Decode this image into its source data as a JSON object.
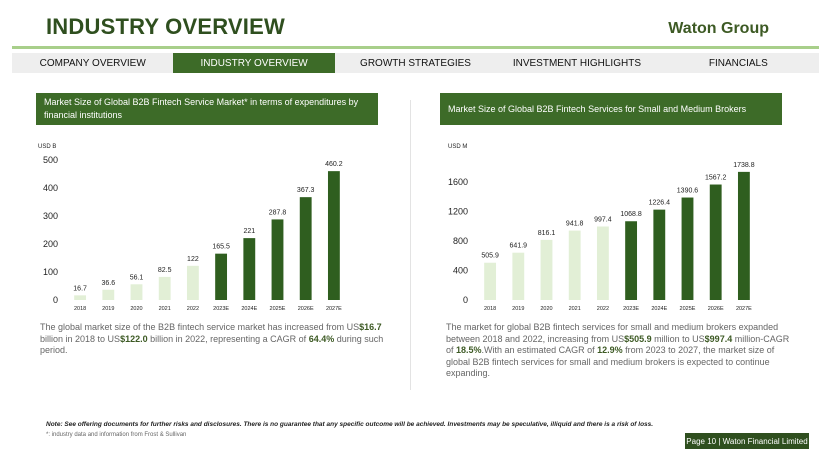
{
  "header": {
    "title": "INDUSTRY OVERVIEW",
    "brand": "Waton Group"
  },
  "nav": {
    "tabs": [
      {
        "label": "COMPANY OVERVIEW"
      },
      {
        "label": "INDUSTRY OVERVIEW"
      },
      {
        "label": "GROWTH STRATEGIES"
      },
      {
        "label": "INVESTMENT HIGHLIGHTS"
      },
      {
        "label": "FINANCIALS"
      }
    ],
    "active_index": 1
  },
  "chart_data": [
    {
      "type": "bar",
      "title": "Market  Size of Global B2B Fintech Service Market* in terms of expenditures by financial institutions",
      "ylabel": "USD B",
      "categories": [
        "2018",
        "2019",
        "2020",
        "2021",
        "2022",
        "2023E",
        "2024E",
        "2025E",
        "2026E",
        "2027E"
      ],
      "values": [
        16.7,
        36.6,
        56.1,
        82.5,
        122,
        165.5,
        221,
        287.8,
        367.3,
        460.2
      ],
      "value_labels": [
        "16.7",
        "36.6",
        "56.1",
        "82.5",
        "122",
        "165.5",
        "221",
        "287.8",
        "367.3",
        "460.2"
      ],
      "yticks": [
        0,
        100,
        200,
        300,
        400,
        500
      ],
      "ylim": [
        0,
        500
      ],
      "colors": [
        "#e2efd6",
        "#e2efd6",
        "#e2efd6",
        "#e2efd6",
        "#e2efd6",
        "#2f5e1f",
        "#2f5e1f",
        "#2f5e1f",
        "#2f5e1f",
        "#2f5e1f"
      ]
    },
    {
      "type": "bar",
      "title": "Market Size of Global B2B Fintech Services for Small and Medium Brokers",
      "ylabel": "USD M",
      "categories": [
        "2018",
        "2019",
        "2020",
        "2021",
        "2022",
        "2023E",
        "2024E",
        "2025E",
        "2026E",
        "2027E"
      ],
      "values": [
        505.9,
        641.9,
        816.1,
        941.8,
        997.4,
        1068.8,
        1226.4,
        1390.6,
        1567.2,
        1738.8
      ],
      "value_labels": [
        "505.9",
        "641.9",
        "816.1",
        "941.8",
        "997.4",
        "1068.8",
        "1226.4",
        "1390.6",
        "1567.2",
        "1738.8"
      ],
      "yticks": [
        0,
        400,
        800,
        1200,
        1600
      ],
      "ylim": [
        0,
        1900
      ],
      "colors": [
        "#e2efd6",
        "#e2efd6",
        "#e2efd6",
        "#e2efd6",
        "#e2efd6",
        "#2f5e1f",
        "#2f5e1f",
        "#2f5e1f",
        "#2f5e1f",
        "#2f5e1f"
      ]
    }
  ],
  "desc1": {
    "p1": "The global market size of the B2B fintech service market has increased from US",
    "v1": "$16.7",
    "p2": " billion in 2018 to US",
    "v2": "$122.0",
    "p3": " billion in 2022, representing a CAGR of ",
    "v3": "64.4%",
    "p4": " during such period."
  },
  "desc2": {
    "p1": "The market for global B2B fintech services for small and medium brokers expanded between 2018 and 2022, increasing from US",
    "v1": "$505.9",
    "p2": " million to US",
    "v2": "$997.4",
    "p3": " million-CAGR of ",
    "v3": "18.5%",
    "p4": ".With an estimated CAGR of ",
    "v4": "12.9%",
    "p5": " from 2023 to 2027, the market size of global B2B fintech services for small and medium brokers is expected to continue expanding."
  },
  "footer": {
    "note": "Note: See offering documents for further risks and disclosures. There is no guarantee that any specific outcome will be achieved. Investments may be speculative, illiquid and there is a risk of loss.",
    "source": "*: industry data and information from Frost & Sullivan",
    "page": "Page 10 | Waton Financial Limited"
  }
}
